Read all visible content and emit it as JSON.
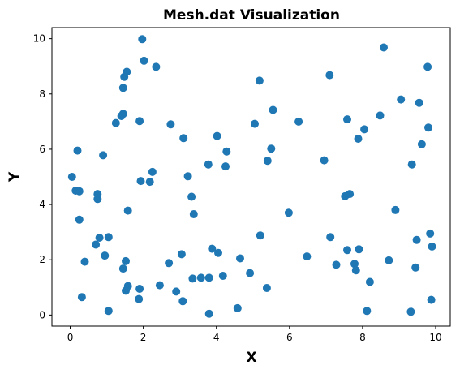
{
  "chart_data": {
    "type": "scatter",
    "title": "Mesh.dat Visualization",
    "xlabel": "X",
    "ylabel": "Y",
    "xlim": [
      -0.5,
      10.4
    ],
    "ylim": [
      -0.4,
      10.4
    ],
    "xticks": [
      "0",
      "2",
      "4",
      "6",
      "8",
      "10"
    ],
    "yticks": [
      "0",
      "2",
      "4",
      "6",
      "8",
      "10"
    ],
    "grid": false,
    "legend": "none",
    "marker_color": "#1f77b4",
    "points": [
      [
        0.05,
        5.0
      ],
      [
        0.15,
        4.5
      ],
      [
        0.2,
        5.95
      ],
      [
        0.25,
        4.48
      ],
      [
        0.25,
        3.45
      ],
      [
        0.32,
        0.65
      ],
      [
        0.4,
        1.93
      ],
      [
        0.7,
        2.55
      ],
      [
        0.75,
        4.2
      ],
      [
        0.75,
        4.38
      ],
      [
        0.8,
        2.8
      ],
      [
        0.9,
        5.78
      ],
      [
        0.95,
        2.15
      ],
      [
        1.05,
        2.82
      ],
      [
        1.05,
        0.15
      ],
      [
        1.25,
        6.95
      ],
      [
        1.4,
        7.2
      ],
      [
        1.45,
        7.28
      ],
      [
        1.45,
        8.22
      ],
      [
        1.48,
        8.62
      ],
      [
        1.55,
        8.8
      ],
      [
        1.45,
        1.68
      ],
      [
        1.52,
        1.95
      ],
      [
        1.52,
        0.88
      ],
      [
        1.58,
        1.05
      ],
      [
        1.58,
        3.78
      ],
      [
        1.88,
        0.58
      ],
      [
        1.9,
        0.95
      ],
      [
        1.9,
        7.02
      ],
      [
        1.93,
        4.85
      ],
      [
        1.97,
        9.98
      ],
      [
        2.02,
        9.2
      ],
      [
        2.18,
        4.82
      ],
      [
        2.25,
        5.18
      ],
      [
        2.35,
        8.98
      ],
      [
        2.45,
        1.08
      ],
      [
        2.7,
        1.88
      ],
      [
        2.75,
        6.9
      ],
      [
        2.9,
        0.85
      ],
      [
        3.05,
        2.2
      ],
      [
        3.08,
        0.5
      ],
      [
        3.1,
        6.4
      ],
      [
        3.22,
        5.02
      ],
      [
        3.32,
        4.28
      ],
      [
        3.35,
        1.32
      ],
      [
        3.38,
        3.65
      ],
      [
        3.58,
        1.35
      ],
      [
        3.78,
        5.45
      ],
      [
        3.8,
        1.35
      ],
      [
        3.8,
        0.05
      ],
      [
        3.88,
        2.4
      ],
      [
        4.02,
        6.48
      ],
      [
        4.05,
        2.25
      ],
      [
        4.18,
        1.42
      ],
      [
        4.25,
        5.38
      ],
      [
        4.28,
        5.92
      ],
      [
        4.58,
        0.25
      ],
      [
        4.65,
        2.05
      ],
      [
        4.92,
        1.52
      ],
      [
        5.05,
        6.92
      ],
      [
        5.18,
        8.48
      ],
      [
        5.2,
        2.88
      ],
      [
        5.38,
        0.98
      ],
      [
        5.4,
        5.58
      ],
      [
        5.5,
        6.02
      ],
      [
        5.55,
        7.42
      ],
      [
        5.98,
        3.7
      ],
      [
        6.25,
        7.0
      ],
      [
        6.48,
        2.12
      ],
      [
        6.95,
        5.6
      ],
      [
        7.1,
        8.68
      ],
      [
        7.12,
        2.82
      ],
      [
        7.28,
        1.82
      ],
      [
        7.52,
        4.3
      ],
      [
        7.58,
        7.08
      ],
      [
        7.58,
        2.35
      ],
      [
        7.65,
        4.38
      ],
      [
        7.78,
        1.85
      ],
      [
        7.82,
        1.62
      ],
      [
        7.88,
        6.38
      ],
      [
        7.9,
        2.38
      ],
      [
        8.05,
        6.72
      ],
      [
        8.12,
        0.15
      ],
      [
        8.2,
        1.2
      ],
      [
        8.48,
        7.22
      ],
      [
        8.58,
        9.68
      ],
      [
        8.72,
        1.98
      ],
      [
        8.9,
        3.8
      ],
      [
        9.05,
        7.8
      ],
      [
        9.32,
        0.12
      ],
      [
        9.35,
        5.45
      ],
      [
        9.45,
        1.72
      ],
      [
        9.48,
        2.72
      ],
      [
        9.55,
        7.68
      ],
      [
        9.62,
        6.18
      ],
      [
        9.78,
        8.98
      ],
      [
        9.8,
        6.78
      ],
      [
        9.85,
        2.95
      ],
      [
        9.9,
        2.48
      ],
      [
        9.88,
        0.55
      ]
    ]
  }
}
